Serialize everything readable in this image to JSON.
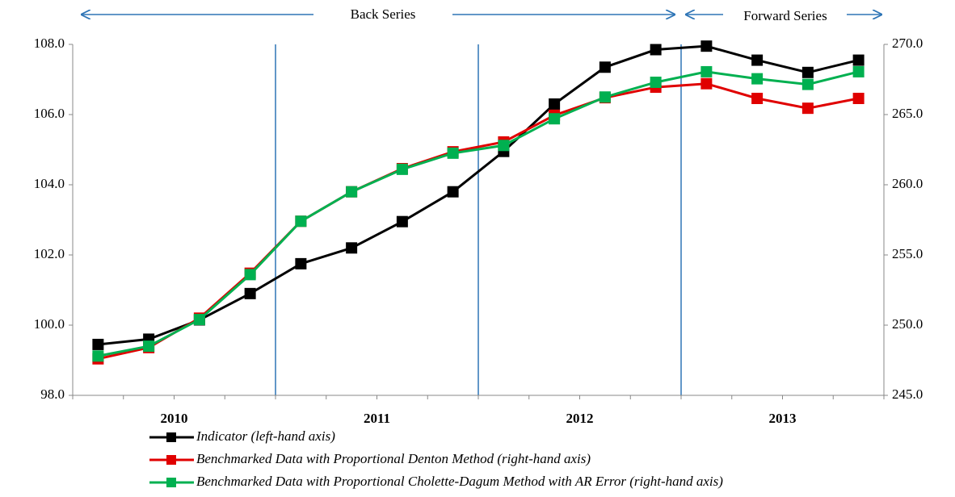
{
  "chart_data": {
    "type": "line",
    "annotations": [
      "Back Series",
      "Forward Series"
    ],
    "categories": [
      null,
      null,
      null,
      null,
      null,
      null,
      null,
      null,
      null,
      null,
      null,
      null,
      null,
      null,
      null,
      null
    ],
    "year_labels": [
      "2010",
      "2011",
      "2012",
      "2013"
    ],
    "series": [
      {
        "name": "Indicator (left-hand axis)",
        "color": "#000000",
        "axis": "y",
        "values": [
          99.45,
          99.6,
          100.15,
          100.9,
          101.75,
          102.2,
          102.95,
          103.8,
          104.95,
          106.3,
          107.35,
          107.85,
          107.95,
          107.55,
          107.2,
          107.55
        ]
      },
      {
        "name": "Benchmarked Data with Proportional Denton Method (right-hand axis)",
        "color": "#e00000",
        "axis": "y2",
        "values": [
          247.6,
          248.4,
          250.5,
          253.7,
          257.4,
          259.5,
          261.15,
          262.35,
          263.05,
          264.95,
          266.2,
          266.95,
          267.2,
          266.15,
          265.45,
          266.15
        ]
      },
      {
        "name": "Benchmarked Data with Proportional Cholette-Dagum  Method with AR Error (right-hand axis)",
        "color": "#00b050",
        "axis": "y2",
        "values": [
          247.8,
          248.5,
          250.4,
          253.6,
          257.4,
          259.5,
          261.1,
          262.25,
          262.8,
          264.7,
          266.25,
          267.3,
          268.05,
          267.55,
          267.15,
          268.05
        ]
      }
    ],
    "ylim": [
      98,
      108
    ],
    "yticks": [
      {
        "value": 98,
        "label": "98.0"
      },
      {
        "value": 100,
        "label": "100.0"
      },
      {
        "value": 102,
        "label": "102.0"
      },
      {
        "value": 104,
        "label": "104.0"
      },
      {
        "value": 106,
        "label": "106.0"
      },
      {
        "value": 108,
        "label": "108.0"
      }
    ],
    "y2lim": [
      245,
      270
    ],
    "y2ticks": [
      {
        "value": 245,
        "label": "245.0"
      },
      {
        "value": 250,
        "label": "250.0"
      },
      {
        "value": 255,
        "label": "255.0"
      },
      {
        "value": 260,
        "label": "260.0"
      },
      {
        "value": 265,
        "label": "265.0"
      },
      {
        "value": 270,
        "label": "270.0"
      }
    ]
  }
}
